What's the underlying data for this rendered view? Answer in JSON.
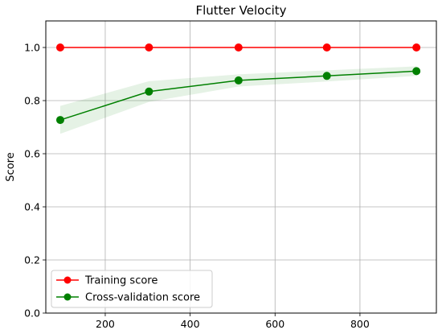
{
  "chart_data": {
    "type": "line",
    "title": "Flutter Velocity",
    "xlabel": "",
    "ylabel": "Score",
    "xlim": [
      60,
      980
    ],
    "ylim": [
      0,
      1.1
    ],
    "x_ticks": [
      200,
      400,
      600,
      800
    ],
    "y_ticks": [
      0.0,
      0.2,
      0.4,
      0.6,
      0.8,
      1.0
    ],
    "grid": true,
    "legend_position": "lower-left",
    "x": [
      94,
      303,
      514,
      722,
      933
    ],
    "series": [
      {
        "name": "Training score",
        "color": "#ff0000",
        "marker": "circle",
        "values": [
          1.0,
          1.0,
          1.0,
          1.0,
          1.0
        ],
        "band_lower": [
          1.0,
          1.0,
          1.0,
          1.0,
          1.0
        ],
        "band_upper": [
          1.0,
          1.0,
          1.0,
          1.0,
          1.0
        ]
      },
      {
        "name": "Cross-validation score",
        "color": "#008000",
        "marker": "circle",
        "values": [
          0.727,
          0.834,
          0.876,
          0.893,
          0.911
        ],
        "band_lower": [
          0.675,
          0.795,
          0.853,
          0.872,
          0.893
        ],
        "band_upper": [
          0.78,
          0.873,
          0.899,
          0.914,
          0.929
        ]
      }
    ]
  }
}
